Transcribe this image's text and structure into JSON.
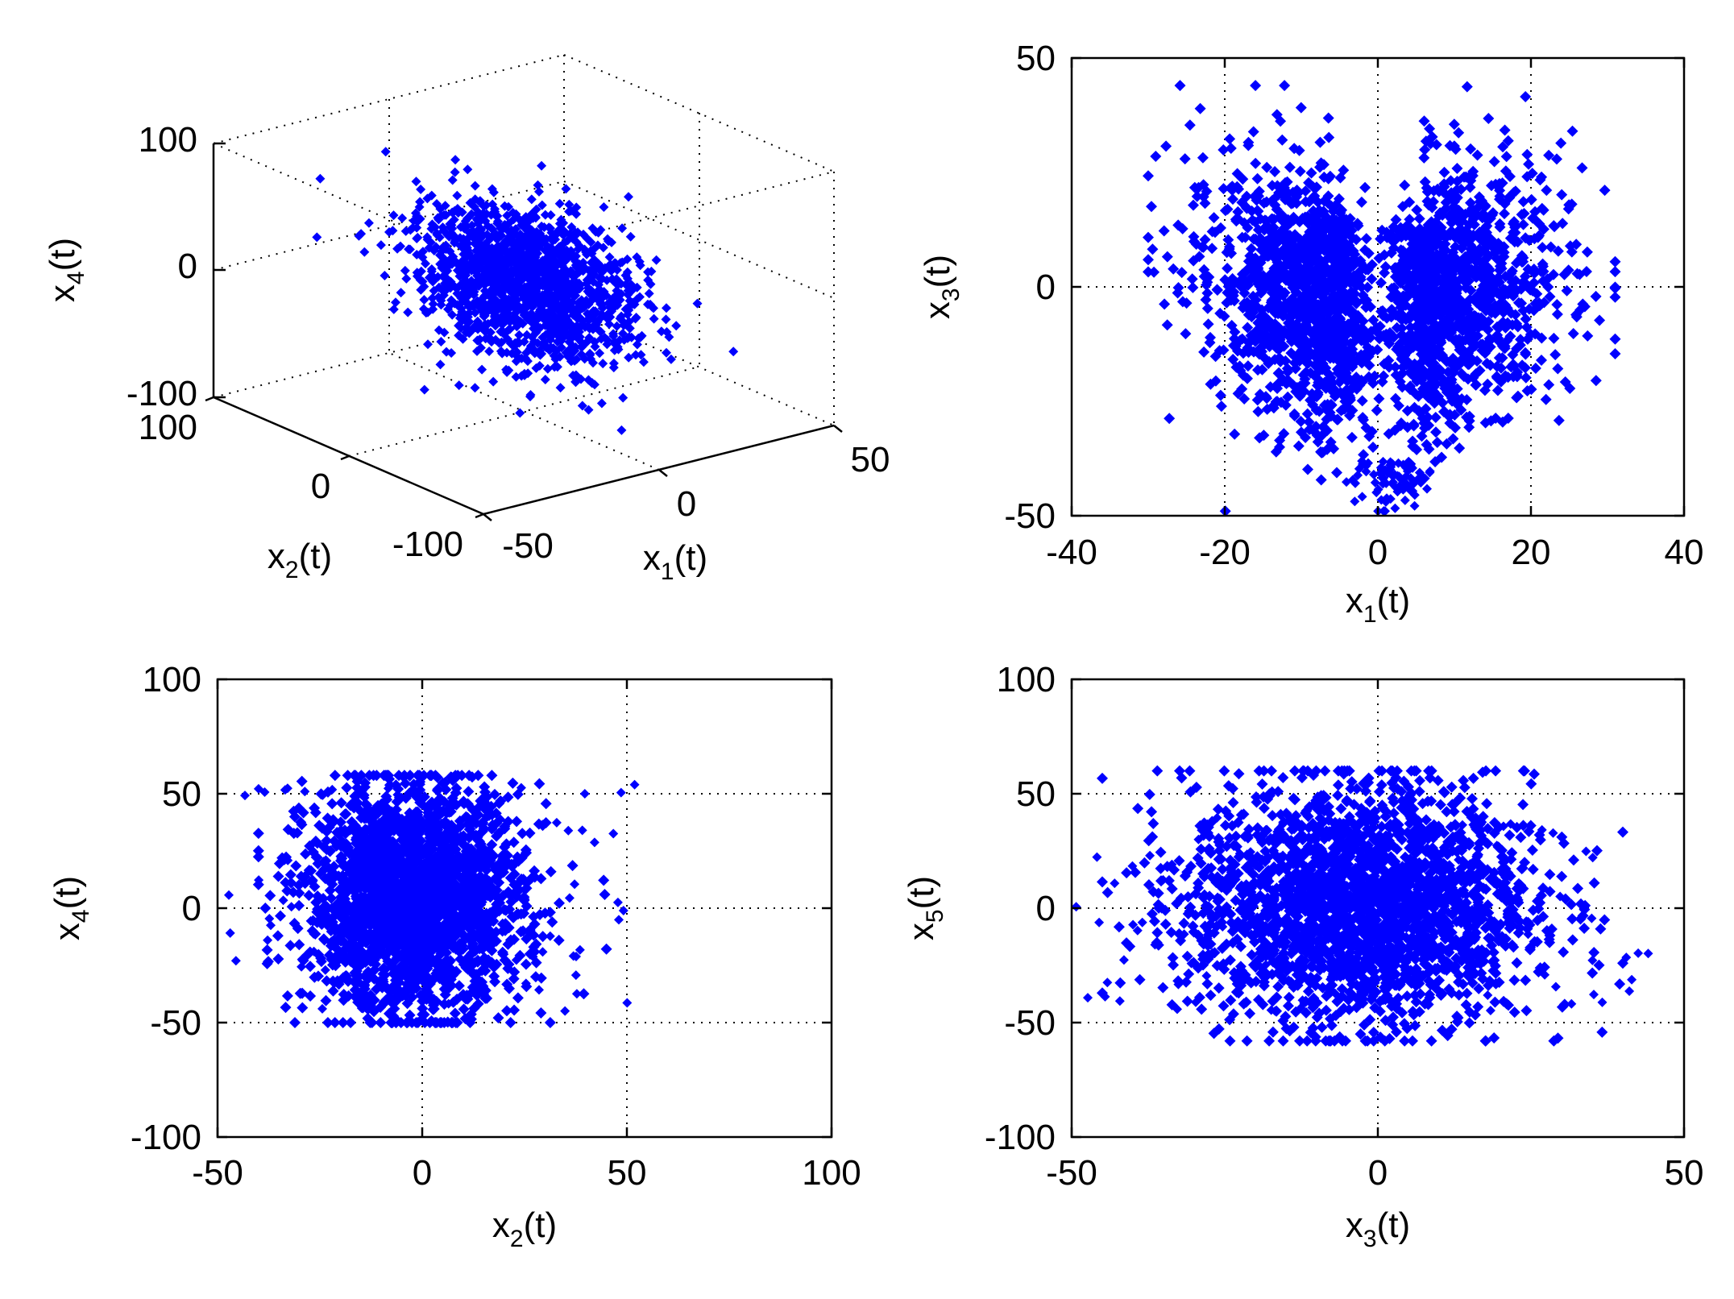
{
  "colors": {
    "points": "#0000ff",
    "axes": "#000000",
    "grid": "#000000",
    "background": "#ffffff"
  },
  "chart_data": [
    {
      "type": "scatter",
      "projection": "3d",
      "title": "",
      "xlabel": "x1(t)",
      "xlabel_main": "x",
      "xlabel_sub": "1",
      "xlabel_tail": "(t)",
      "ylabel": "x2(t)",
      "ylabel_main": "x",
      "ylabel_sub": "2",
      "ylabel_tail": "(t)",
      "zlabel": "x4(t)",
      "zlabel_main": "x",
      "zlabel_sub": "4",
      "zlabel_tail": "(t)",
      "xlim": [
        -50,
        50
      ],
      "ylim": [
        -100,
        100
      ],
      "zlim": [
        -100,
        100
      ],
      "xticks": [
        "-50",
        "0",
        "50"
      ],
      "yticks": [
        "-100",
        "0",
        "100"
      ],
      "zticks": [
        "-100",
        "0",
        "100"
      ],
      "grid": true,
      "marker": "diamond",
      "cloud": {
        "x_center": 0,
        "y_center": 0,
        "z_center": 0,
        "x_spread": 12,
        "y_spread": 25,
        "z_spread": 25
      }
    },
    {
      "type": "scatter",
      "title": "",
      "xlabel": "x1(t)",
      "xlabel_main": "x",
      "xlabel_sub": "1",
      "xlabel_tail": "(t)",
      "ylabel": "x3(t)",
      "ylabel_main": "x",
      "ylabel_sub": "3",
      "ylabel_tail": "(t)",
      "xlim": [
        -40,
        40
      ],
      "ylim": [
        -50,
        50
      ],
      "xticks": [
        "-40",
        "-20",
        "0",
        "20",
        "40"
      ],
      "yticks": [
        "-50",
        "0",
        "50"
      ],
      "grid": true,
      "marker": "diamond",
      "cloud_extent": {
        "x": [
          -30,
          31
        ],
        "y": [
          -50,
          45
        ]
      }
    },
    {
      "type": "scatter",
      "title": "",
      "xlabel": "x2(t)",
      "xlabel_main": "x",
      "xlabel_sub": "2",
      "xlabel_tail": "(t)",
      "ylabel": "x4(t)",
      "ylabel_main": "x",
      "ylabel_sub": "4",
      "ylabel_tail": "(t)",
      "xlim": [
        -50,
        100
      ],
      "ylim": [
        -100,
        100
      ],
      "xticks": [
        "-50",
        "0",
        "50",
        "100"
      ],
      "yticks": [
        "-100",
        "-50",
        "0",
        "50",
        "100"
      ],
      "grid": true,
      "marker": "diamond",
      "cloud_extent": {
        "x": [
          -48,
          53
        ],
        "y": [
          -50,
          60
        ]
      }
    },
    {
      "type": "scatter",
      "title": "",
      "xlabel": "x3(t)",
      "xlabel_main": "x",
      "xlabel_sub": "3",
      "xlabel_tail": "(t)",
      "ylabel": "x5(t)",
      "ylabel_main": "x",
      "ylabel_sub": "5",
      "ylabel_tail": "(t)",
      "xlim": [
        -50,
        50
      ],
      "ylim": [
        -100,
        100
      ],
      "xticks": [
        "-50",
        "0",
        "50"
      ],
      "yticks": [
        "-100",
        "-50",
        "0",
        "50",
        "100"
      ],
      "grid": true,
      "marker": "diamond",
      "cloud_extent": {
        "x": [
          -50,
          45
        ],
        "y": [
          -58,
          60
        ]
      }
    }
  ]
}
